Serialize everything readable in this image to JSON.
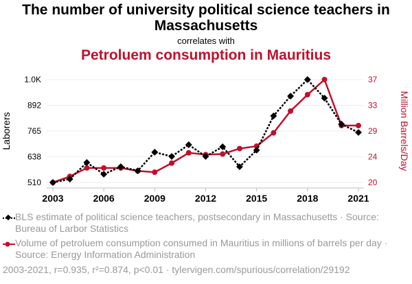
{
  "chart_data": {
    "type": "line",
    "title": "The number of university political science teachers in Massachusetts",
    "subtitle": "correlates with",
    "title2": "Petroluem consumption in Mauritius",
    "x": [
      2003,
      2004,
      2005,
      2006,
      2007,
      2008,
      2009,
      2010,
      2011,
      2012,
      2013,
      2014,
      2015,
      2016,
      2017,
      2018,
      2019,
      2020,
      2021
    ],
    "xticks": [
      "2003",
      "2006",
      "2009",
      "2012",
      "2015",
      "2018",
      "2021"
    ],
    "ylabel_left": "Laborers",
    "ylabel_right": "Million Barrels/Day",
    "yticks_left": [
      "510",
      "638",
      "765",
      "892",
      "1.0K"
    ],
    "ylim_left": [
      510,
      1020
    ],
    "yticks_right": [
      "20",
      "24",
      "29",
      "33",
      "37"
    ],
    "ylim_right": [
      20,
      37
    ],
    "series": [
      {
        "name": "BLS estimate of political science teachers, postsecondary in Massachusetts · Source: Bureau of Larbor Statistics",
        "axis": "left",
        "color": "#000000",
        "values": [
          510,
          527,
          609,
          551,
          588,
          568,
          660,
          639,
          697,
          639,
          687,
          588,
          670,
          840,
          938,
          1020,
          928,
          799,
          758
        ]
      },
      {
        "name": "Volume of petroluem consumption consumed in Mauritius in millions of barrels per day · Source: Energy Information Administration",
        "axis": "right",
        "color": "#c0102c",
        "values": [
          20,
          21.0,
          22.4,
          22.4,
          22.4,
          21.9,
          21.7,
          23.2,
          24.9,
          24.6,
          24.7,
          25.6,
          26.0,
          28.2,
          31.8,
          34.5,
          37,
          29.4,
          29.4
        ]
      }
    ],
    "footer": "2003-2021, r=0.935, r²=0.874, p<0.01 · tylervigen.com/spurious/correlation/29192"
  }
}
